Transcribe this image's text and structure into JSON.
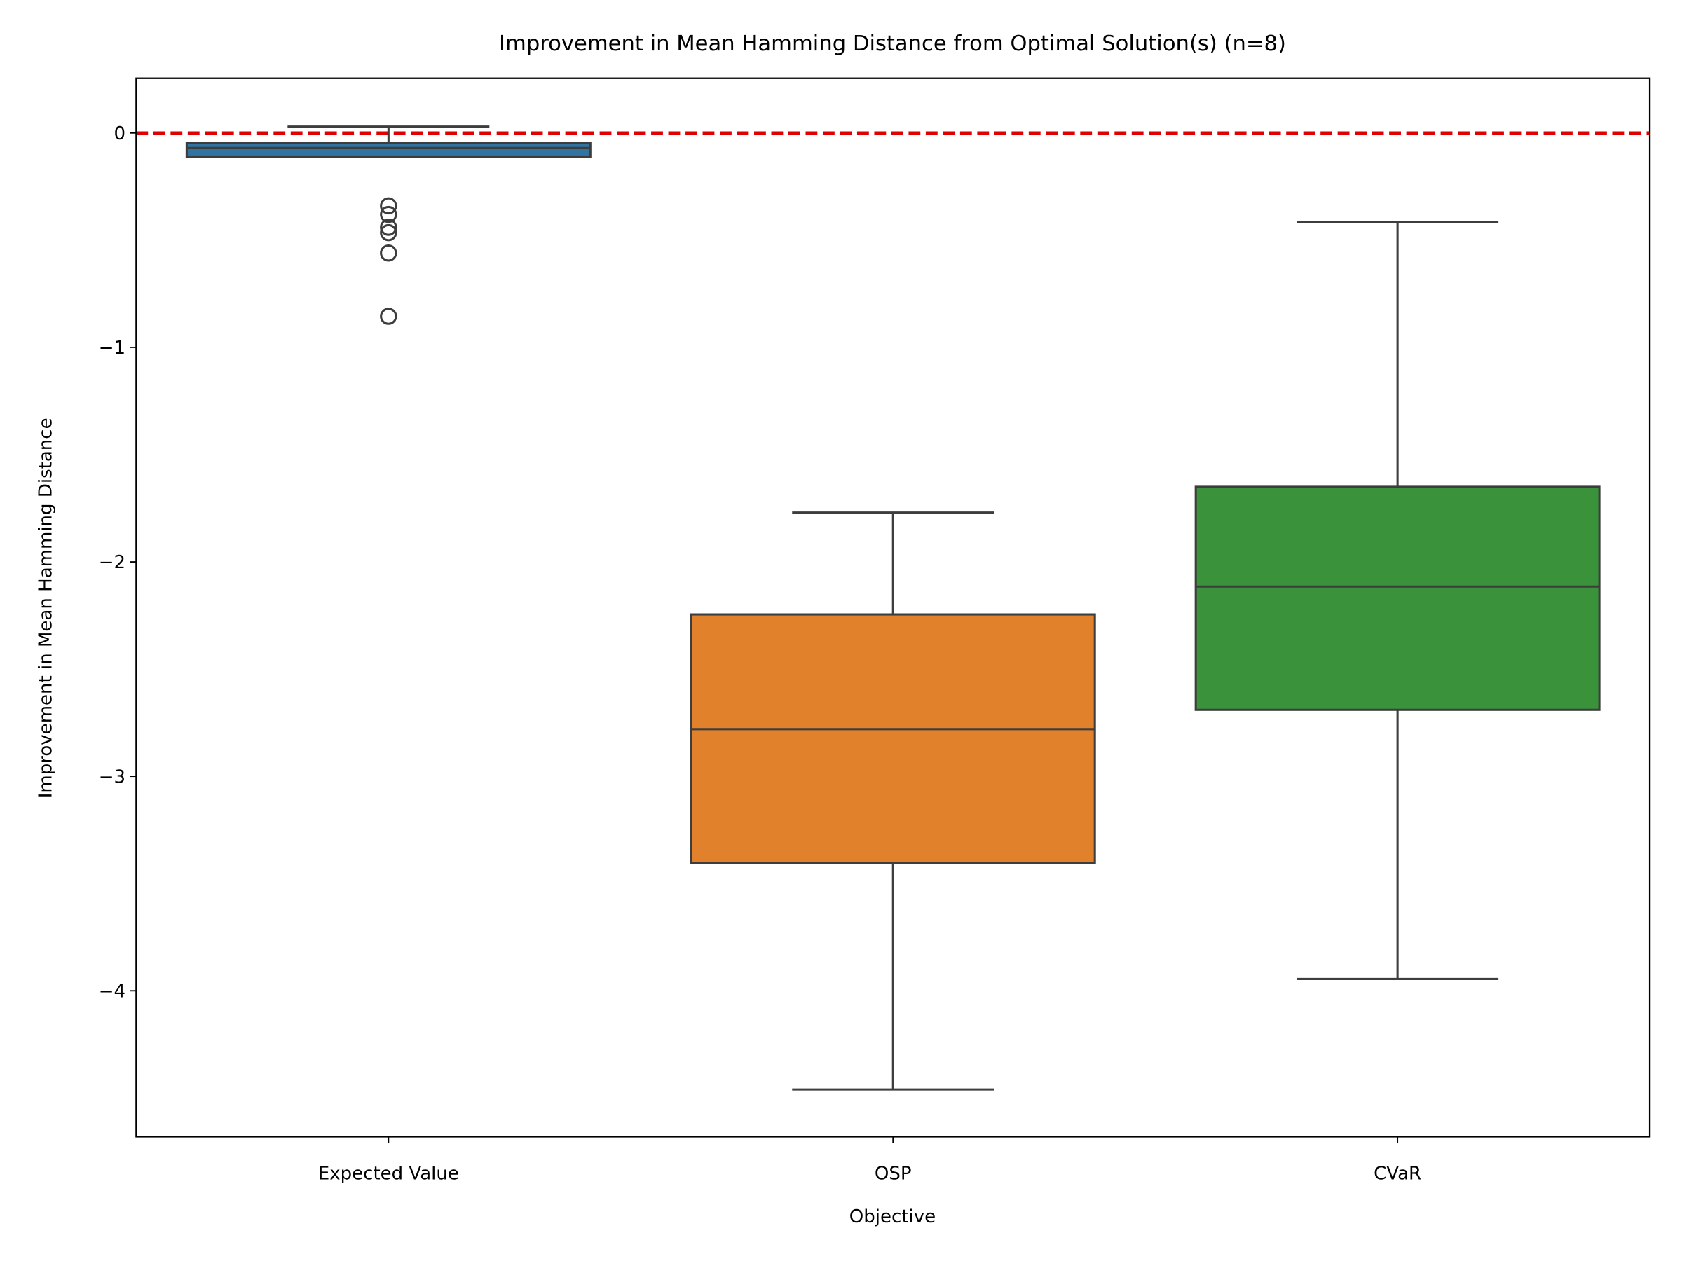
{
  "chart_data": {
    "type": "box",
    "title": "Improvement in Mean Hamming Distance from Optimal Solution(s) (n=8)",
    "x_label": "Objective",
    "y_label": "Improvement in Mean Hamming Distance",
    "categories": [
      "Expected Value",
      "OSP",
      "CVaR"
    ],
    "boxes": [
      {
        "color": "#3274a1",
        "whisker_low": -0.11,
        "q1": -0.11,
        "median": -0.07,
        "q3": -0.045,
        "whisker_high": 0.03,
        "outliers": [
          -0.34,
          -0.38,
          -0.44,
          -0.465,
          -0.56,
          -0.855
        ]
      },
      {
        "color": "#e1812c",
        "whisker_low": -4.46,
        "q1": -3.405,
        "median": -2.78,
        "q3": -2.245,
        "whisker_high": -1.77,
        "outliers": []
      },
      {
        "color": "#3a923a",
        "whisker_low": -3.945,
        "q1": -2.69,
        "median": -2.115,
        "q3": -1.65,
        "whisker_high": -0.415,
        "outliers": []
      }
    ],
    "reference_line": {
      "value": 0,
      "color": "#e00000"
    },
    "ylim": [
      -4.68,
      0.255
    ],
    "yticks": [
      {
        "value": -4,
        "label": "−4"
      },
      {
        "value": -3,
        "label": "−3"
      },
      {
        "value": -2,
        "label": "−2"
      },
      {
        "value": -1,
        "label": "−1"
      },
      0
    ]
  }
}
